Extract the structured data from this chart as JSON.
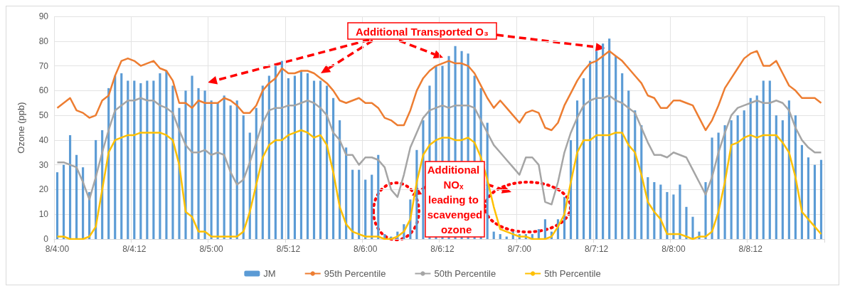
{
  "chart_data": {
    "type": "bar",
    "ylabel": "Ozone (ppb)",
    "ylim": [
      0,
      90
    ],
    "yticks": [
      0,
      10,
      20,
      30,
      40,
      50,
      60,
      70,
      80,
      90
    ],
    "grid": true,
    "legend": "bottom",
    "marker": "none",
    "categories": [
      "8/4:00",
      null,
      null,
      null,
      null,
      null,
      null,
      null,
      null,
      null,
      null,
      null,
      "8/4:12",
      null,
      null,
      null,
      null,
      null,
      null,
      null,
      null,
      null,
      null,
      null,
      "8/5:00",
      null,
      null,
      null,
      null,
      null,
      null,
      null,
      null,
      null,
      null,
      null,
      "8/5:12",
      null,
      null,
      null,
      null,
      null,
      null,
      null,
      null,
      null,
      null,
      null,
      "8/6:00",
      null,
      null,
      null,
      null,
      null,
      null,
      null,
      null,
      null,
      null,
      null,
      "8/6:12",
      null,
      null,
      null,
      null,
      null,
      null,
      null,
      null,
      null,
      null,
      null,
      "8/7:00",
      null,
      null,
      null,
      null,
      null,
      null,
      null,
      null,
      null,
      null,
      null,
      "8/7:12",
      null,
      null,
      null,
      null,
      null,
      null,
      null,
      null,
      null,
      null,
      null,
      "8/8:00",
      null,
      null,
      null,
      null,
      null,
      null,
      null,
      null,
      null,
      null,
      null,
      "8/8:12",
      null,
      null,
      null,
      null,
      null,
      null,
      null,
      null,
      null,
      null,
      null
    ],
    "series": [
      {
        "name": "JM",
        "color": "#5b9bd5",
        "values": [
          27,
          30,
          42,
          34,
          29,
          19,
          40,
          44,
          61,
          66,
          67,
          64,
          64,
          63,
          64,
          64,
          67,
          68,
          62,
          53,
          60,
          66,
          61,
          60,
          56,
          55,
          58,
          54,
          56,
          50,
          43,
          53,
          62,
          66,
          70,
          72,
          65,
          66,
          68,
          67,
          64,
          64,
          62,
          57,
          48,
          37,
          28,
          28,
          24,
          26,
          34,
          2,
          1,
          3,
          6,
          16,
          36,
          48,
          62,
          70,
          70,
          74,
          78,
          76,
          75,
          66,
          61,
          47,
          3,
          2,
          1,
          3,
          2,
          2,
          2,
          4,
          8,
          3,
          8,
          17,
          40,
          56,
          65,
          72,
          76,
          79,
          81,
          74,
          67,
          60,
          52,
          46,
          25,
          23,
          22,
          19,
          18,
          22,
          13,
          9,
          3,
          23,
          41,
          43,
          46,
          48,
          50,
          52,
          57,
          58,
          64,
          64,
          50,
          48,
          56,
          50,
          38,
          33,
          30,
          32
        ]
      },
      {
        "name": "95th Percentile",
        "type": "line",
        "color": "#ed7d31",
        "values": [
          53,
          55,
          57,
          52,
          51,
          49,
          50,
          56,
          58,
          66,
          72,
          73,
          72,
          70,
          71,
          72,
          69,
          68,
          64,
          55,
          55,
          53,
          56,
          55,
          55,
          55,
          57,
          56,
          54,
          51,
          51,
          54,
          60,
          63,
          65,
          69,
          67,
          67,
          68,
          68,
          67,
          65,
          63,
          60,
          56,
          55,
          56,
          57,
          55,
          55,
          53,
          49,
          48,
          46,
          46,
          52,
          60,
          65,
          68,
          70,
          71,
          72,
          71,
          71,
          70,
          67,
          62,
          57,
          53,
          56,
          53,
          50,
          47,
          51,
          52,
          51,
          45,
          44,
          47,
          54,
          59,
          64,
          68,
          71,
          72,
          74,
          76,
          74,
          72,
          69,
          66,
          63,
          58,
          57,
          53,
          53,
          56,
          56,
          55,
          54,
          49,
          44,
          48,
          54,
          61,
          65,
          69,
          73,
          75,
          76,
          70,
          70,
          72,
          67,
          62,
          60,
          57,
          57,
          57,
          55
        ]
      },
      {
        "name": "50th Percentile",
        "type": "line",
        "color": "#a5a5a5",
        "values": [
          31,
          31,
          30,
          29,
          23,
          16,
          25,
          35,
          44,
          52,
          54,
          56,
          56,
          57,
          56,
          56,
          54,
          53,
          51,
          44,
          38,
          35,
          35,
          36,
          34,
          35,
          34,
          27,
          22,
          24,
          31,
          39,
          47,
          52,
          53,
          53,
          54,
          54,
          55,
          56,
          55,
          53,
          50,
          43,
          40,
          34,
          34,
          30,
          33,
          33,
          32,
          29,
          20,
          17,
          26,
          37,
          43,
          49,
          52,
          53,
          54,
          53,
          54,
          54,
          54,
          53,
          48,
          43,
          38,
          35,
          32,
          29,
          26,
          33,
          33,
          30,
          15,
          14,
          23,
          35,
          43,
          49,
          54,
          56,
          57,
          57,
          58,
          56,
          55,
          53,
          51,
          45,
          39,
          34,
          34,
          33,
          35,
          34,
          33,
          28,
          23,
          18,
          25,
          35,
          43,
          50,
          53,
          54,
          55,
          56,
          55,
          55,
          56,
          55,
          52,
          45,
          40,
          37,
          35,
          35
        ]
      },
      {
        "name": "5th Percentile",
        "type": "line",
        "color": "#ffc000",
        "values": [
          1,
          1,
          0,
          0,
          0,
          1,
          5,
          20,
          35,
          40,
          41,
          42,
          42,
          43,
          43,
          43,
          43,
          42,
          40,
          30,
          11,
          9,
          3,
          3,
          1,
          1,
          1,
          1,
          1,
          3,
          11,
          22,
          33,
          38,
          40,
          40,
          42,
          43,
          44,
          43,
          41,
          42,
          38,
          27,
          13,
          6,
          3,
          2,
          1,
          1,
          1,
          0,
          0,
          1,
          3,
          8,
          23,
          34,
          38,
          40,
          41,
          41,
          40,
          40,
          41,
          39,
          33,
          24,
          13,
          4,
          3,
          2,
          1,
          1,
          0,
          0,
          0,
          1,
          5,
          10,
          23,
          35,
          40,
          40,
          42,
          42,
          42,
          43,
          43,
          38,
          35,
          26,
          15,
          11,
          8,
          2,
          2,
          2,
          1,
          0,
          1,
          1,
          3,
          11,
          23,
          38,
          39,
          41,
          42,
          41,
          42,
          42,
          42,
          39,
          35,
          25,
          11,
          8,
          5,
          2
        ]
      }
    ],
    "annotations": [
      {
        "text": "Additional Transported O₃",
        "x": "8/7:12",
        "y": 76
      },
      "Additional NOₓ leading to scavenged ozone"
    ]
  }
}
